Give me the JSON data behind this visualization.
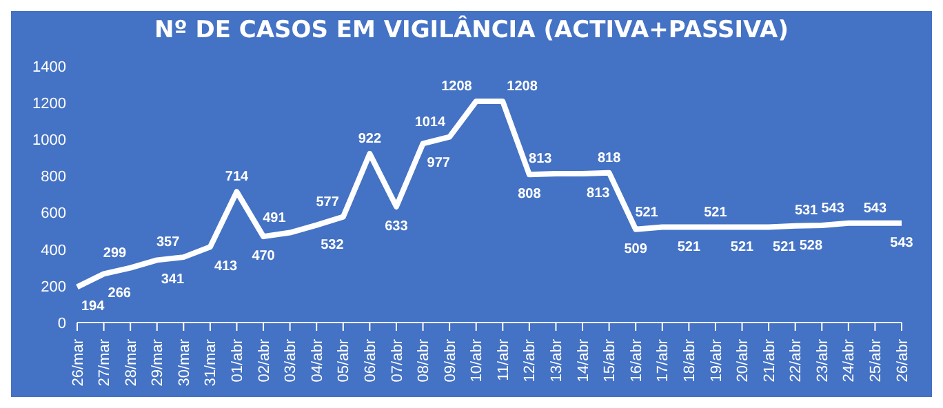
{
  "chart_data": {
    "type": "line",
    "title": "Nº DE CASOS EM VIGILÂNCIA (ACTIVA+PASSIVA)",
    "categories": [
      "26/mar",
      "27/mar",
      "28/mar",
      "29/mar",
      "30/mar",
      "31/mar",
      "01/abr",
      "02/abr",
      "03/abr",
      "04/abr",
      "05/abr",
      "06/abr",
      "07/abr",
      "08/abr",
      "09/abr",
      "10/abr",
      "11/abr",
      "12/abr",
      "13/abr",
      "14/abr",
      "15/abr",
      "16/abr",
      "17/abr",
      "18/abr",
      "19/abr",
      "20/abr",
      "21/abr",
      "22/abr",
      "23/abr",
      "24/abr",
      "25/abr",
      "26/abr"
    ],
    "series": [
      {
        "color": "#ffffff",
        "values": [
          194,
          266,
          299,
          341,
          357,
          413,
          714,
          470,
          491,
          532,
          577,
          922,
          633,
          977,
          1014,
          1208,
          1208,
          808,
          813,
          813,
          818,
          509,
          521,
          521,
          521,
          521,
          521,
          528,
          531,
          543,
          543,
          543
        ]
      }
    ],
    "ylim": [
      0,
      1400
    ],
    "yticks": [
      0,
      200,
      400,
      600,
      800,
      1000,
      1200,
      1400
    ],
    "grid": false,
    "legend": false,
    "marker": "none",
    "line_style": "solid",
    "data_labels": true
  }
}
